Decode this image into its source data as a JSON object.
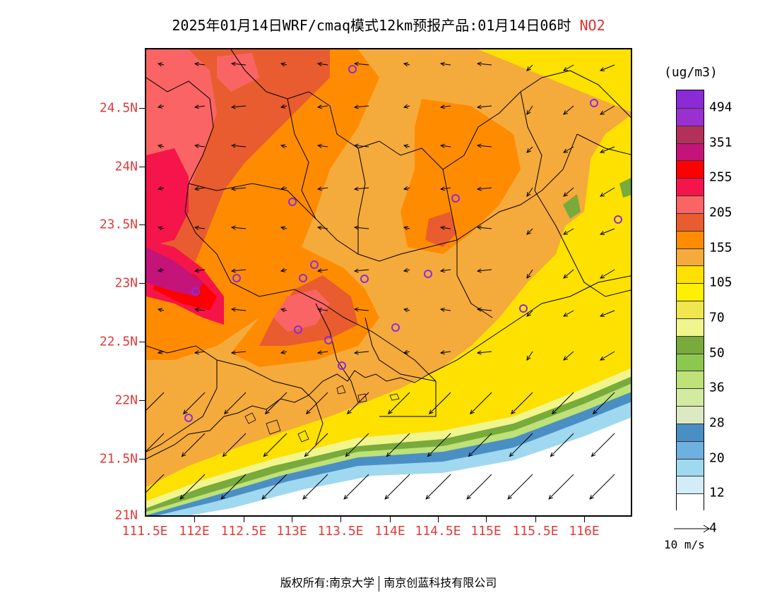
{
  "header": {
    "title": "2025年01月14日WRF/cmaq模式12km预报产品:01月14日06时",
    "pollutant": "NO2"
  },
  "map": {
    "lat_labels": [
      "21N",
      "21.5N",
      "22N",
      "22.5N",
      "23N",
      "23.5N",
      "24N",
      "24.5N"
    ],
    "lon_labels": [
      "111.5E",
      "112E",
      "112.5E",
      "113E",
      "113.5E",
      "114E",
      "114.5E",
      "115E",
      "115.5E",
      "116E"
    ],
    "station_marker_color": "#8a2be2",
    "boundary_color": "#000000"
  },
  "legend": {
    "unit": "(ug/m3)",
    "levels": [
      "494",
      "351",
      "255",
      "205",
      "155",
      "105",
      "70",
      "50",
      "36",
      "28",
      "20",
      "12",
      "4"
    ],
    "colors": [
      "#8c2bd6",
      "#9b30d0",
      "#b2305a",
      "#c4147a",
      "#ff0000",
      "#f5154a",
      "#fa6464",
      "#e85c30",
      "#ff8c00",
      "#f5aa3c",
      "#ffe100",
      "#fff000",
      "#f0e650",
      "#f0f58c",
      "#78aa3c",
      "#8cc850",
      "#bee178",
      "#d2eba0",
      "#dce9c3",
      "#4a8fc4",
      "#6eb0e0",
      "#a0d8f0",
      "#d2ecf8",
      "#ffffff"
    ],
    "wind_scale_label": "10 m/s"
  },
  "footer": {
    "copyright_left": "版权所有:南京大学",
    "copyright_right": "南京创蓝科技有限公司"
  }
}
